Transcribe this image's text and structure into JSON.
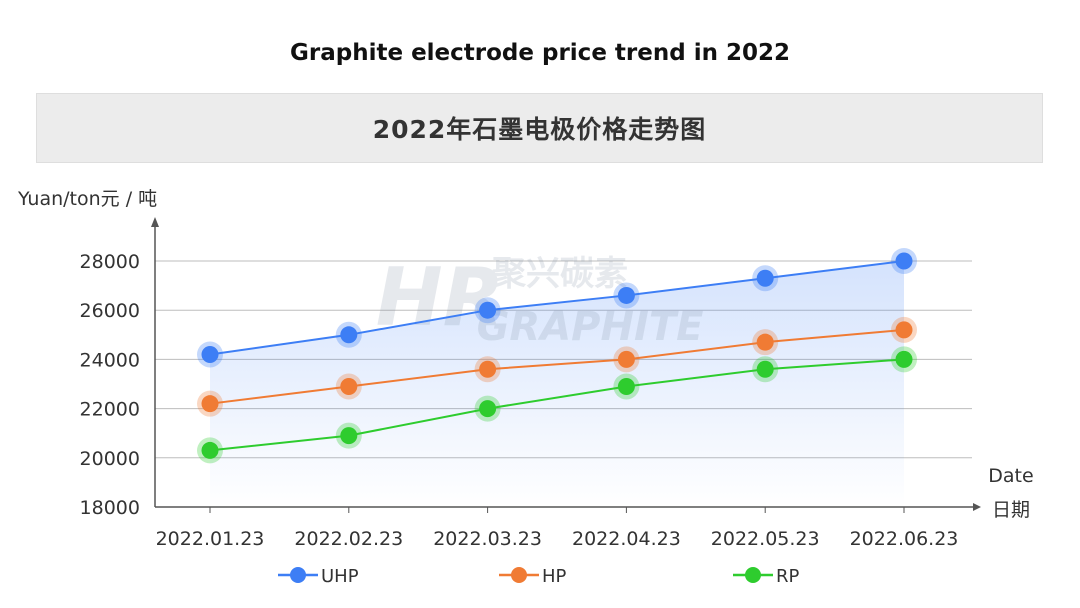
{
  "page_title": "Graphite electrode price trend in 2022",
  "watermark": {
    "brand_cn": "聚兴碳素",
    "brand_en": "GRAPHITE"
  },
  "chart_data": {
    "type": "line",
    "title": "2022年石墨电极价格走势图",
    "ylabel": "Yuan/ton元 / 吨",
    "xlabel_en": "Date",
    "xlabel_cn": "日期",
    "categories": [
      "2022.01.23",
      "2022.02.23",
      "2022.03.23",
      "2022.04.23",
      "2022.05.23",
      "2022.06.23"
    ],
    "ylim": [
      18000,
      28000
    ],
    "yticks": [
      18000,
      20000,
      22000,
      24000,
      26000,
      28000
    ],
    "grid": true,
    "legend_position": "bottom",
    "series": [
      {
        "name": "UHP",
        "color": "#3d7ef5",
        "values": [
          24200,
          25000,
          26000,
          26600,
          27300,
          28000
        ]
      },
      {
        "name": "HP",
        "color": "#f07b34",
        "values": [
          22200,
          22900,
          23600,
          24000,
          24700,
          25200
        ]
      },
      {
        "name": "RP",
        "color": "#2ecc2e",
        "values": [
          20300,
          20900,
          22000,
          22900,
          23600,
          24000
        ]
      }
    ]
  }
}
